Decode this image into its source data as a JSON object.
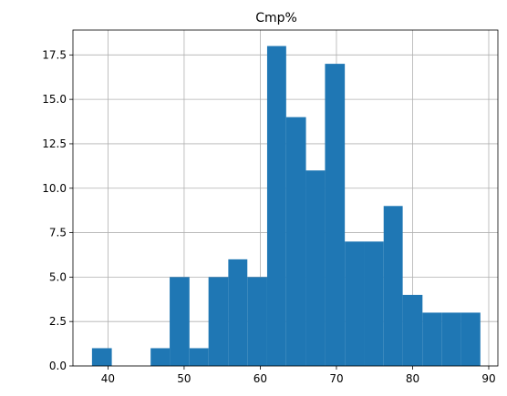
{
  "chart_data": {
    "type": "bar",
    "title": "Cmp%",
    "xlabel": "",
    "ylabel": "",
    "xlim": [
      35.4,
      91.2
    ],
    "ylim": [
      0,
      18.9
    ],
    "grid": true,
    "bar_color": "#1f77b4",
    "grid_color": "#b0b0b0",
    "x_ticks": [
      40,
      50,
      60,
      70,
      80,
      90
    ],
    "x_tick_labels": [
      "40",
      "50",
      "60",
      "70",
      "80",
      "90"
    ],
    "y_ticks": [
      0,
      2.5,
      5,
      7.5,
      10,
      12.5,
      15,
      17.5
    ],
    "y_tick_labels": [
      "0.0",
      "2.5",
      "5.0",
      "7.5",
      "10.0",
      "12.5",
      "15.0",
      "17.5"
    ],
    "bins": [
      {
        "x0": 37.9,
        "x1": 40.5,
        "count": 1
      },
      {
        "x0": 40.5,
        "x1": 43.0,
        "count": 0
      },
      {
        "x0": 43.0,
        "x1": 45.6,
        "count": 0
      },
      {
        "x0": 45.6,
        "x1": 48.1,
        "count": 1
      },
      {
        "x0": 48.1,
        "x1": 50.7,
        "count": 5
      },
      {
        "x0": 50.7,
        "x1": 53.2,
        "count": 1
      },
      {
        "x0": 53.2,
        "x1": 55.8,
        "count": 5
      },
      {
        "x0": 55.8,
        "x1": 58.3,
        "count": 6
      },
      {
        "x0": 58.3,
        "x1": 60.9,
        "count": 5
      },
      {
        "x0": 60.9,
        "x1": 63.4,
        "count": 18
      },
      {
        "x0": 63.4,
        "x1": 66.0,
        "count": 14
      },
      {
        "x0": 66.0,
        "x1": 68.5,
        "count": 11
      },
      {
        "x0": 68.5,
        "x1": 71.1,
        "count": 17
      },
      {
        "x0": 71.1,
        "x1": 73.6,
        "count": 7
      },
      {
        "x0": 73.6,
        "x1": 76.2,
        "count": 7
      },
      {
        "x0": 76.2,
        "x1": 78.7,
        "count": 9
      },
      {
        "x0": 78.7,
        "x1": 81.3,
        "count": 4
      },
      {
        "x0": 81.3,
        "x1": 83.8,
        "count": 3
      },
      {
        "x0": 83.8,
        "x1": 86.4,
        "count": 3
      },
      {
        "x0": 86.4,
        "x1": 88.9,
        "count": 3
      }
    ]
  }
}
